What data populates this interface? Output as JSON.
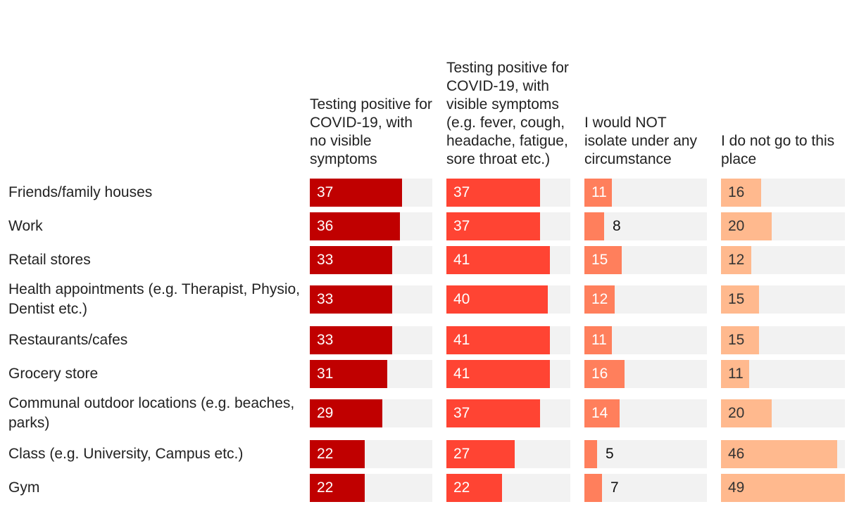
{
  "chart_data": {
    "type": "bar",
    "orientation": "horizontal",
    "categories": [
      "Friends/family houses",
      "Work",
      "Retail stores",
      "Health appointments (e.g. Therapist, Physio, Dentist etc.)",
      "Restaurants/cafes",
      "Grocery store",
      "Communal outdoor locations (e.g. beaches, parks)",
      "Class (e.g. University, Campus etc.)",
      "Gym"
    ],
    "series": [
      {
        "name": "Testing positive for COVID-19, with no visible symptoms",
        "color": "#c00000",
        "text_color": "#ffffff",
        "values": [
          37,
          36,
          33,
          33,
          33,
          31,
          29,
          22,
          22
        ]
      },
      {
        "name": "Testing positive for COVID-19, with visible symptoms (e.g. fever, cough, headache, fatigue, sore throat etc.)",
        "color": "#ff4433",
        "text_color": "#ffffff",
        "values": [
          37,
          37,
          41,
          40,
          41,
          41,
          37,
          27,
          22
        ]
      },
      {
        "name": "I would NOT isolate under any circumstance",
        "color": "#ff7f5c",
        "text_color": "#ffffff",
        "values": [
          11,
          8,
          15,
          12,
          11,
          16,
          14,
          5,
          7
        ]
      },
      {
        "name": "I do not go to this place",
        "color": "#ffb98e",
        "text_color": "#333333",
        "values": [
          16,
          20,
          12,
          15,
          15,
          11,
          20,
          46,
          49
        ]
      }
    ],
    "xlim": [
      0,
      49
    ],
    "track_color": "#f2f2f2"
  }
}
